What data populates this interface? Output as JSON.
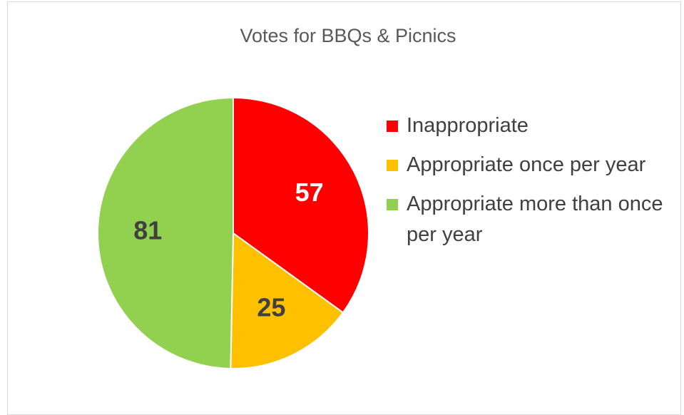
{
  "chart_data": {
    "type": "pie",
    "title": "Votes for BBQs & Picnics",
    "categories": [
      "Inappropriate",
      "Appropriate once per year",
      "Appropriate more than once per year"
    ],
    "values": [
      57,
      25,
      81
    ],
    "colors": [
      "#ff0000",
      "#ffc000",
      "#92d050"
    ],
    "legend": "right"
  }
}
